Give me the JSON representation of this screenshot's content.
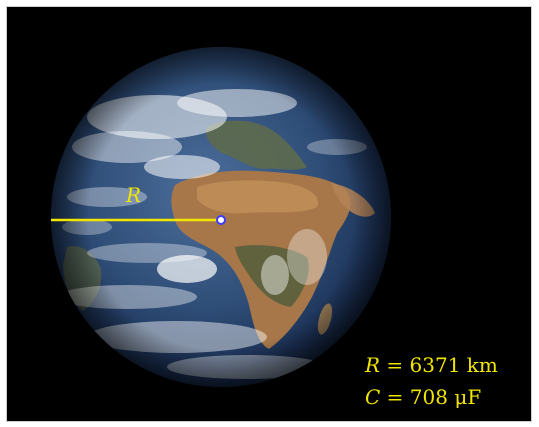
{
  "colors": {
    "background": "#000000",
    "radius_line": "#f2e600",
    "label_text": "#f2e600",
    "center_dot": "#3c3cff"
  },
  "image": {
    "subject": "earth-globe",
    "radius_symbol": "R",
    "readouts": [
      {
        "symbol": "R",
        "eq": " = ",
        "value": "6371 km"
      },
      {
        "symbol": "C",
        "eq": " = ",
        "value": "708 μF"
      }
    ]
  }
}
